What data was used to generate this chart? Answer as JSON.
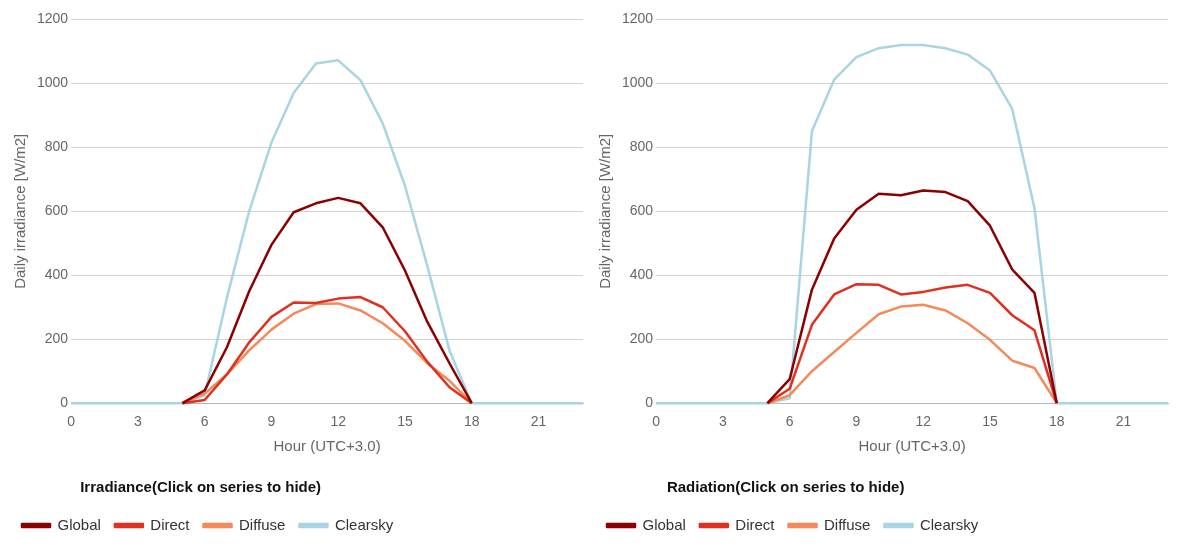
{
  "chart_data": [
    {
      "type": "line",
      "xlabel": "Hour (UTC+3.0)",
      "ylabel": "Daily irradiance [W/m2]",
      "legend_title": "Irradiance(Click on series to hide)",
      "legend": "bottom",
      "grid": "y",
      "marker": "none",
      "line_style": "solid",
      "x": [
        0,
        1,
        2,
        3,
        4,
        5,
        6,
        7,
        8,
        9,
        10,
        11,
        12,
        13,
        14,
        15,
        16,
        17,
        18,
        19,
        20,
        21,
        22,
        23
      ],
      "xlim": [
        0,
        23
      ],
      "xticks": [
        0,
        3,
        6,
        9,
        12,
        15,
        18,
        21
      ],
      "ylim": [
        0,
        1200
      ],
      "yticks": [
        0,
        200,
        400,
        600,
        800,
        1000,
        1200
      ],
      "series": [
        {
          "name": "Global",
          "color": "#8b0000",
          "values": [
            null,
            null,
            null,
            null,
            null,
            0,
            40,
            175,
            350,
            495,
            597,
            625,
            642,
            625,
            550,
            415,
            255,
            125,
            0,
            null,
            null,
            null,
            null,
            null
          ]
        },
        {
          "name": "Direct",
          "color": "#e03020",
          "values": [
            null,
            null,
            null,
            null,
            null,
            0,
            10,
            90,
            190,
            270,
            315,
            313,
            327,
            332,
            300,
            225,
            130,
            50,
            0,
            null,
            null,
            null,
            null,
            null
          ]
        },
        {
          "name": "Diffuse",
          "color": "#f4895a",
          "values": [
            null,
            null,
            null,
            null,
            null,
            0,
            30,
            90,
            165,
            230,
            280,
            310,
            312,
            290,
            250,
            195,
            125,
            70,
            0,
            null,
            null,
            null,
            null,
            null
          ]
        },
        {
          "name": "Clearsky",
          "color": "#a8d4e4",
          "values": [
            0,
            0,
            0,
            0,
            0,
            0,
            25,
            330,
            600,
            815,
            970,
            1062,
            1072,
            1010,
            875,
            680,
            430,
            165,
            0,
            0,
            0,
            0,
            0,
            0
          ]
        }
      ]
    },
    {
      "type": "line",
      "xlabel": "Hour (UTC+3.0)",
      "ylabel": "Daily irradiance [W/m2]",
      "legend_title": "Radiation(Click on series to hide)",
      "legend": "bottom",
      "grid": "y",
      "marker": "none",
      "line_style": "solid",
      "x": [
        0,
        1,
        2,
        3,
        4,
        5,
        6,
        7,
        8,
        9,
        10,
        11,
        12,
        13,
        14,
        15,
        16,
        17,
        18,
        19,
        20,
        21,
        22,
        23
      ],
      "xlim": [
        0,
        23
      ],
      "xticks": [
        0,
        3,
        6,
        9,
        12,
        15,
        18,
        21
      ],
      "ylim": [
        0,
        1200
      ],
      "yticks": [
        0,
        200,
        400,
        600,
        800,
        1000,
        1200
      ],
      "series": [
        {
          "name": "Global",
          "color": "#8b0000",
          "values": [
            null,
            null,
            null,
            null,
            null,
            0,
            75,
            355,
            515,
            605,
            655,
            650,
            665,
            660,
            632,
            555,
            418,
            345,
            0,
            null,
            null,
            null,
            null,
            null
          ]
        },
        {
          "name": "Direct",
          "color": "#e03020",
          "values": [
            null,
            null,
            null,
            null,
            null,
            0,
            45,
            245,
            340,
            372,
            370,
            340,
            348,
            362,
            370,
            345,
            275,
            228,
            0,
            null,
            null,
            null,
            null,
            null
          ]
        },
        {
          "name": "Diffuse",
          "color": "#f4895a",
          "values": [
            null,
            null,
            null,
            null,
            null,
            0,
            25,
            100,
            160,
            220,
            278,
            302,
            308,
            290,
            250,
            198,
            133,
            110,
            0,
            null,
            null,
            null,
            null,
            null
          ]
        },
        {
          "name": "Clearsky",
          "color": "#a8d4e4",
          "values": [
            0,
            0,
            0,
            0,
            0,
            0,
            15,
            850,
            1012,
            1082,
            1110,
            1120,
            1120,
            1110,
            1090,
            1040,
            920,
            610,
            0,
            0,
            0,
            0,
            0,
            0
          ]
        }
      ]
    }
  ]
}
